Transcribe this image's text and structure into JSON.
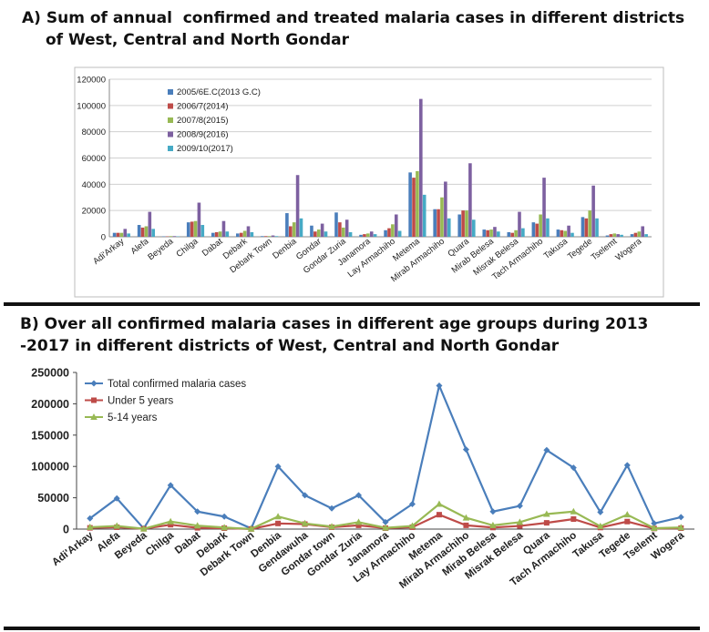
{
  "panel_a": {
    "title_line1": "A) Sum of annual  confirmed and treated malaria cases in different districts",
    "title_line2": "of West, Central and North Gondar"
  },
  "panel_b": {
    "title_line1": "B) Over all confirmed malaria cases in different age groups during 2013",
    "title_line2": "-2017 in different districts of West, Central and North Gondar"
  },
  "chart_data": [
    {
      "type": "bar",
      "title": "Sum of annual confirmed and treated malaria cases in different districts of West, Central and North Gondar",
      "xlabel": "",
      "ylabel": "",
      "ylim": [
        0,
        120000
      ],
      "yticks": [
        "0",
        "20000",
        "40000",
        "60000",
        "80000",
        "100000",
        "120000"
      ],
      "grid": true,
      "legend_position": "top-left",
      "categories": [
        "Adi'Arkay",
        "Alefa",
        "Beyeda",
        "Chilga",
        "Dabat",
        "Debark",
        "Debark Town",
        "Denbia",
        "Gondar",
        "Gondar Zuria",
        "Janamora",
        "Lay Armachiho",
        "Metema",
        "Mirab Armachiho",
        "Quara",
        "Mirab Belesa",
        "Misrak Belesa",
        "Tach Armachiho",
        "Takusa",
        "Tegede",
        "Tselemt",
        "Wogera"
      ],
      "series": [
        {
          "name": "2005/6E.C(2013 G.C)",
          "color": "#4a7ebb",
          "values": [
            3000,
            9000,
            300,
            11000,
            3000,
            2500,
            500,
            18000,
            8500,
            18500,
            1500,
            5000,
            49000,
            21000,
            17000,
            5500,
            3500,
            11000,
            5500,
            15000,
            1000,
            2000
          ]
        },
        {
          "name": "2006/7(2014)",
          "color": "#be4b48",
          "values": [
            3000,
            7000,
            300,
            11500,
            3500,
            3000,
            500,
            8000,
            4000,
            11000,
            2000,
            6500,
            45000,
            21000,
            20000,
            5000,
            3000,
            10000,
            5000,
            14000,
            2000,
            3000
          ]
        },
        {
          "name": "2007/8(2015)",
          "color": "#98b954",
          "values": [
            3000,
            8000,
            500,
            12000,
            4000,
            4500,
            500,
            11000,
            5500,
            7000,
            2500,
            9500,
            50000,
            30000,
            20000,
            5500,
            5000,
            17000,
            4500,
            20000,
            2500,
            4000
          ]
        },
        {
          "name": "2008/9(2016)",
          "color": "#7d60a0",
          "values": [
            6000,
            19000,
            500,
            26000,
            12000,
            8000,
            1000,
            47000,
            10000,
            13000,
            4000,
            17000,
            105000,
            42000,
            56000,
            7500,
            19000,
            45000,
            8500,
            39000,
            2000,
            8000
          ]
        },
        {
          "name": "2009/10(2017)",
          "color": "#46aac5",
          "values": [
            2500,
            6000,
            300,
            9000,
            4000,
            3500,
            500,
            14000,
            4000,
            3500,
            2000,
            4500,
            32000,
            14000,
            13000,
            4000,
            6500,
            14000,
            3000,
            14000,
            1500,
            2000
          ]
        }
      ]
    },
    {
      "type": "line",
      "title": "Over all confirmed malaria cases in different age groups during 2013-2017 in different districts of West, Central and North Gondar",
      "xlabel": "",
      "ylabel": "",
      "ylim": [
        0,
        250000
      ],
      "yticks": [
        "0",
        "50000",
        "100000",
        "150000",
        "200000",
        "250000"
      ],
      "grid": false,
      "legend_position": "top-left",
      "categories": [
        "Adi'Arkay",
        "Alefa",
        "Beyeda",
        "Chilga",
        "Dabat",
        "Debark",
        "Debark Town",
        "Denbia",
        "Gendawuha",
        "Gondar town",
        "Gondar Zuria",
        "Janamora",
        "Lay Armachiho",
        "Metema",
        "Mirab Armachiho",
        "Mirab Belesa",
        "Misrak Belesa",
        "Quara",
        "Tach Armachiho",
        "Takusa",
        "Tegede",
        "Tselemt",
        "Wogera"
      ],
      "series": [
        {
          "name": "Total confirmed malaria cases",
          "color": "#4a7ebb",
          "marker": "diamond",
          "values": [
            17000,
            49000,
            1000,
            70000,
            28000,
            20000,
            1000,
            100000,
            54000,
            33000,
            54000,
            11000,
            40000,
            229000,
            127000,
            28000,
            37000,
            126000,
            98000,
            27000,
            102000,
            9000,
            19000
          ]
        },
        {
          "name": "Under 5 years",
          "color": "#be4b48",
          "marker": "square",
          "values": [
            2000,
            3000,
            500,
            7000,
            2000,
            1500,
            200,
            9000,
            8000,
            3000,
            6000,
            1500,
            3000,
            23000,
            6000,
            2500,
            5000,
            10000,
            16000,
            2500,
            12000,
            1000,
            1500
          ]
        },
        {
          "name": "5-14 years",
          "color": "#98b954",
          "marker": "triangle",
          "values": [
            3000,
            5000,
            500,
            12000,
            5500,
            2500,
            300,
            20000,
            9000,
            4000,
            11000,
            2000,
            5000,
            40000,
            18000,
            6000,
            11000,
            24000,
            28000,
            4500,
            23000,
            1500,
            2500
          ]
        }
      ]
    }
  ]
}
